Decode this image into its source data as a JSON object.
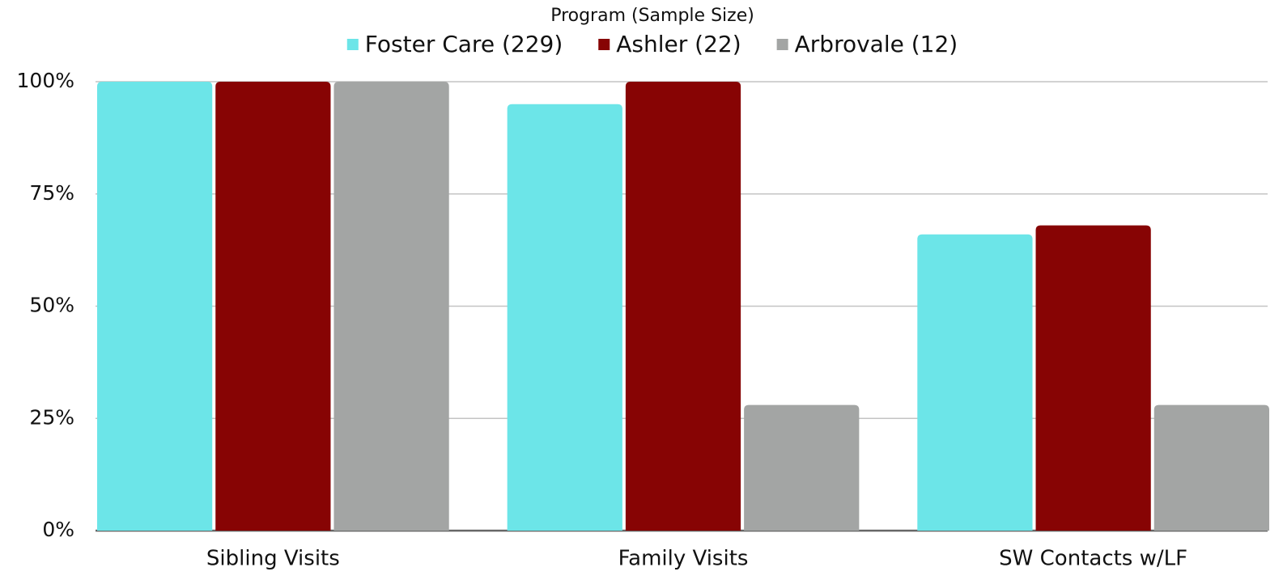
{
  "chart_data": {
    "type": "bar",
    "legend_title": "Program (Sample Size)",
    "categories": [
      "Sibling Visits",
      "Family Visits",
      "SW Contacts w/LF"
    ],
    "series": [
      {
        "name": "Foster Care (229)",
        "color": "#6ce5e8",
        "values": [
          100,
          95,
          66
        ]
      },
      {
        "name": "Ashler (22)",
        "color": "#870404",
        "values": [
          100,
          100,
          68
        ]
      },
      {
        "name": "Arbrovale (12)",
        "color": "#a3a5a4",
        "values": [
          100,
          28,
          28
        ]
      }
    ],
    "ylim": [
      0,
      100
    ],
    "yticks": [
      {
        "value": 0,
        "label": "0%"
      },
      {
        "value": 25,
        "label": "25%"
      },
      {
        "value": 50,
        "label": "50%"
      },
      {
        "value": 75,
        "label": "75%"
      },
      {
        "value": 100,
        "label": "100%"
      }
    ],
    "grid": true,
    "legend": "top"
  }
}
